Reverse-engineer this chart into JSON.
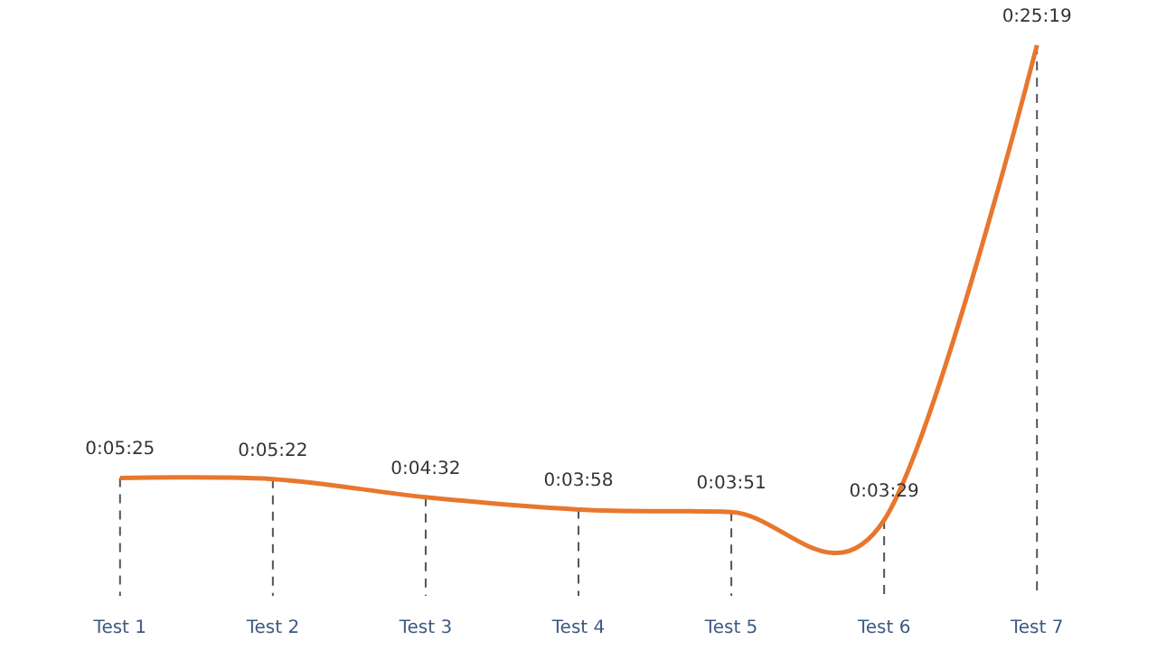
{
  "chart_data": {
    "type": "line",
    "categories": [
      "Test 1",
      "Test 2",
      "Test 3",
      "Test 4",
      "Test 5",
      "Test 6",
      "Test 7"
    ],
    "values": [
      325,
      322,
      272,
      238,
      231,
      209,
      1519
    ],
    "value_labels": [
      "0:05:25",
      "0:05:22",
      "0:04:32",
      "0:03:58",
      "0:03:51",
      "0:03:29",
      "0:25:19"
    ],
    "color": "#e8772e",
    "marker": "none",
    "line_style": "solid",
    "tick_labels": "x"
  }
}
